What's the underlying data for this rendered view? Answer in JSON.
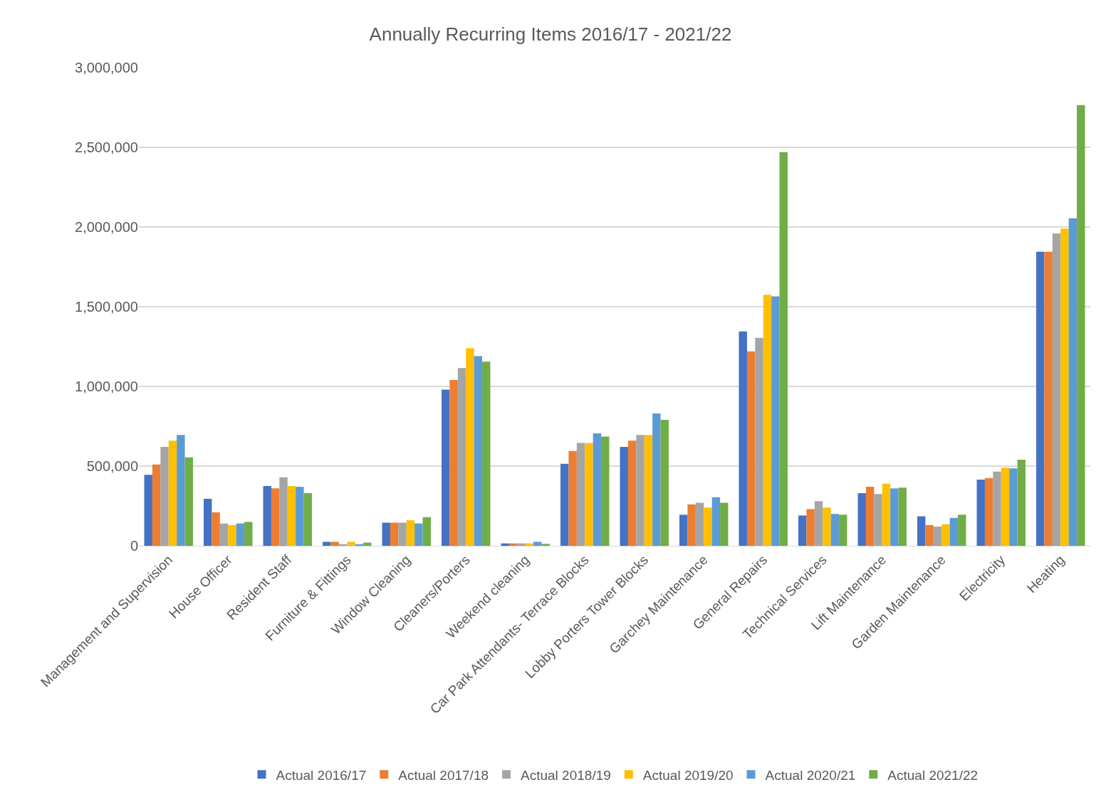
{
  "chart_data": {
    "type": "bar",
    "title": "Annually Recurring Items 2016/17 - 2021/22",
    "categories": [
      "Management and Supervision",
      "House Officer",
      "Resident Staff",
      "Furniture & Fittings",
      "Window Cleaning",
      "Cleaners/Porters",
      "Weekend cleaning",
      "Car Park Attendants- Terrace Blocks",
      "Lobby Porters Tower Blocks",
      "Garchey Maintenance",
      "General Repairs",
      "Technical Services",
      "Lift Maintenance",
      "Garden Maintenance",
      "Electricity",
      "Heating"
    ],
    "series": [
      {
        "name": "Actual 2016/17",
        "color": "#4472c4",
        "values": [
          445000,
          295000,
          375000,
          25000,
          145000,
          980000,
          15000,
          515000,
          620000,
          195000,
          1345000,
          190000,
          330000,
          185000,
          415000,
          1845000
        ]
      },
      {
        "name": "Actual 2017/18",
        "color": "#ed7d31",
        "values": [
          510000,
          210000,
          360000,
          25000,
          145000,
          1040000,
          15000,
          595000,
          660000,
          260000,
          1220000,
          230000,
          370000,
          130000,
          425000,
          1845000
        ]
      },
      {
        "name": "Actual 2018/19",
        "color": "#a5a5a5",
        "values": [
          620000,
          140000,
          430000,
          10000,
          145000,
          1115000,
          15000,
          645000,
          695000,
          270000,
          1305000,
          280000,
          325000,
          120000,
          465000,
          1960000
        ]
      },
      {
        "name": "Actual 2019/20",
        "color": "#ffc000",
        "values": [
          660000,
          130000,
          375000,
          25000,
          160000,
          1240000,
          15000,
          645000,
          695000,
          240000,
          1575000,
          240000,
          390000,
          135000,
          490000,
          1990000
        ]
      },
      {
        "name": "Actual 2020/21",
        "color": "#5b9bd5",
        "values": [
          695000,
          140000,
          370000,
          10000,
          140000,
          1190000,
          25000,
          705000,
          830000,
          305000,
          1565000,
          200000,
          360000,
          175000,
          485000,
          2055000
        ]
      },
      {
        "name": "Actual 2021/22",
        "color": "#70ad47",
        "values": [
          555000,
          150000,
          330000,
          20000,
          180000,
          1155000,
          12000,
          685000,
          790000,
          270000,
          2470000,
          195000,
          365000,
          195000,
          540000,
          2765000
        ]
      }
    ],
    "ylim": [
      0,
      3000000
    ],
    "yticks": [
      {
        "value": 0,
        "label": "0"
      },
      {
        "value": 500000,
        "label": "500,000"
      },
      {
        "value": 1000000,
        "label": "1,000,000"
      },
      {
        "value": 1500000,
        "label": "1,500,000"
      },
      {
        "value": 2000000,
        "label": "2,000,000"
      },
      {
        "value": 2500000,
        "label": "2,500,000"
      },
      {
        "value": 3000000,
        "label": "3,000,000"
      }
    ],
    "grid": "y",
    "legend": "bottom"
  }
}
